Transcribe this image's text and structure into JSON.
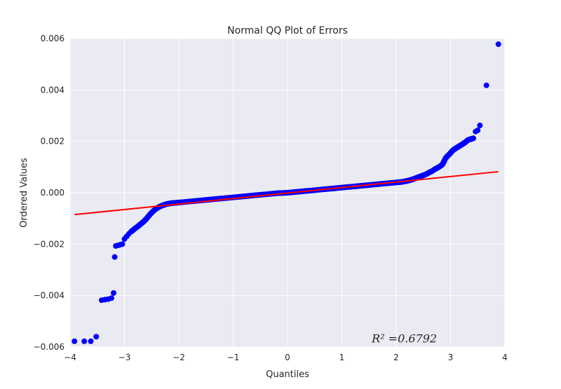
{
  "chart_data": {
    "type": "scatter",
    "title": "Normal QQ Plot of Errors",
    "xlabel": "Quantiles",
    "ylabel": "Ordered Values",
    "xlim": [
      -4,
      4
    ],
    "ylim": [
      -0.006,
      0.006
    ],
    "x_ticks": [
      -4,
      -3,
      -2,
      -1,
      0,
      1,
      2,
      3,
      4
    ],
    "x_tick_labels": [
      "−4",
      "−3",
      "−2",
      "−1",
      "0",
      "1",
      "2",
      "3",
      "4"
    ],
    "y_ticks": [
      -0.006,
      -0.004,
      -0.002,
      0.0,
      0.002,
      0.004,
      0.006
    ],
    "y_tick_labels": [
      "−0.006",
      "−0.004",
      "−0.002",
      "0.000",
      "0.002",
      "0.004",
      "0.006"
    ],
    "grid": true,
    "background_color": "#eaeaf2",
    "series": [
      {
        "kind": "points",
        "color": "#0000ff",
        "points": [
          [
            -3.92,
            -0.00578
          ],
          [
            -3.74,
            -0.00578
          ],
          [
            -3.62,
            -0.00578
          ],
          [
            -3.52,
            -0.0056
          ],
          [
            -3.42,
            -0.00418
          ],
          [
            -3.36,
            -0.00416
          ],
          [
            -3.3,
            -0.00414
          ],
          [
            -3.24,
            -0.0041
          ],
          [
            -3.2,
            -0.0039
          ],
          [
            -3.18,
            -0.0025
          ],
          [
            -3.16,
            -0.00207
          ],
          [
            -3.12,
            -0.00205
          ],
          [
            -3.08,
            -0.00202
          ],
          [
            -3.04,
            -0.002
          ],
          [
            -3.0,
            -0.0018
          ],
          [
            -2.96,
            -0.0017
          ],
          [
            -2.92,
            -0.0016
          ],
          [
            -2.88,
            -0.00152
          ],
          [
            -2.84,
            -0.00145
          ],
          [
            -2.8,
            -0.00138
          ],
          [
            -2.76,
            -0.00132
          ],
          [
            -2.72,
            -0.00125
          ],
          [
            -2.68,
            -0.00118
          ],
          [
            -2.64,
            -0.00111
          ],
          [
            -2.6,
            -0.00102
          ],
          [
            -2.56,
            -0.00092
          ],
          [
            -2.52,
            -0.00082
          ],
          [
            -2.48,
            -0.00073
          ],
          [
            -2.44,
            -0.00066
          ],
          [
            -2.4,
            -0.0006
          ],
          [
            -2.36,
            -0.00055
          ],
          [
            -2.32,
            -0.00051
          ],
          [
            -2.28,
            -0.00048
          ],
          [
            -2.24,
            -0.00045
          ],
          [
            -2.2,
            -0.00043
          ],
          [
            -2.15,
            -0.00041
          ],
          [
            -2.1,
            -0.0004
          ],
          [
            -2.05,
            -0.00039
          ],
          [
            -2.0,
            -0.00038
          ],
          [
            -1.9,
            -0.00036
          ],
          [
            -1.8,
            -0.00034
          ],
          [
            -1.7,
            -0.00032
          ],
          [
            -1.6,
            -0.0003
          ],
          [
            -1.5,
            -0.00028
          ],
          [
            -1.4,
            -0.00026
          ],
          [
            -1.3,
            -0.00024
          ],
          [
            -1.2,
            -0.00022
          ],
          [
            -1.1,
            -0.0002
          ],
          [
            -1.0,
            -0.00018
          ],
          [
            -0.9,
            -0.00016
          ],
          [
            -0.8,
            -0.00014
          ],
          [
            -0.7,
            -0.00012
          ],
          [
            -0.6,
            -0.0001
          ],
          [
            -0.5,
            -8e-05
          ],
          [
            -0.4,
            -6e-05
          ],
          [
            -0.3,
            -4e-05
          ],
          [
            -0.2,
            -2e-05
          ],
          [
            -0.1,
            -1e-05
          ],
          [
            0.0,
            0.0
          ],
          [
            0.1,
            2e-05
          ],
          [
            0.2,
            4e-05
          ],
          [
            0.3,
            6e-05
          ],
          [
            0.4,
            8e-05
          ],
          [
            0.5,
            0.0001
          ],
          [
            0.6,
            0.00012
          ],
          [
            0.7,
            0.00014
          ],
          [
            0.8,
            0.00016
          ],
          [
            0.9,
            0.00018
          ],
          [
            1.0,
            0.0002
          ],
          [
            1.1,
            0.00022
          ],
          [
            1.2,
            0.00024
          ],
          [
            1.3,
            0.00026
          ],
          [
            1.4,
            0.00028
          ],
          [
            1.5,
            0.0003
          ],
          [
            1.6,
            0.00032
          ],
          [
            1.7,
            0.00034
          ],
          [
            1.8,
            0.00036
          ],
          [
            1.9,
            0.00038
          ],
          [
            2.0,
            0.0004
          ],
          [
            2.05,
            0.00041
          ],
          [
            2.1,
            0.00042
          ],
          [
            2.15,
            0.00044
          ],
          [
            2.2,
            0.00046
          ],
          [
            2.25,
            0.00049
          ],
          [
            2.3,
            0.00052
          ],
          [
            2.35,
            0.00056
          ],
          [
            2.4,
            0.0006
          ],
          [
            2.45,
            0.00064
          ],
          [
            2.5,
            0.00068
          ],
          [
            2.55,
            0.00072
          ],
          [
            2.6,
            0.00078
          ],
          [
            2.65,
            0.00083
          ],
          [
            2.7,
            0.0009
          ],
          [
            2.75,
            0.00096
          ],
          [
            2.8,
            0.00102
          ],
          [
            2.85,
            0.0011
          ],
          [
            2.88,
            0.00122
          ],
          [
            2.91,
            0.00135
          ],
          [
            2.94,
            0.00142
          ],
          [
            2.97,
            0.00148
          ],
          [
            3.0,
            0.00155
          ],
          [
            3.03,
            0.00162
          ],
          [
            3.06,
            0.00168
          ],
          [
            3.09,
            0.00172
          ],
          [
            3.12,
            0.00176
          ],
          [
            3.15,
            0.0018
          ],
          [
            3.18,
            0.00184
          ],
          [
            3.21,
            0.00188
          ],
          [
            3.24,
            0.00192
          ],
          [
            3.27,
            0.00196
          ],
          [
            3.3,
            0.00202
          ],
          [
            3.33,
            0.00206
          ],
          [
            3.36,
            0.00208
          ],
          [
            3.39,
            0.0021
          ],
          [
            3.42,
            0.00212
          ],
          [
            3.46,
            0.00238
          ],
          [
            3.5,
            0.00243
          ],
          [
            3.54,
            0.00262
          ],
          [
            3.66,
            0.00418
          ],
          [
            3.88,
            0.00578
          ]
        ]
      },
      {
        "kind": "fit_line",
        "color": "#ff0000",
        "x": [
          -3.92,
          3.88
        ],
        "y": [
          -0.00085,
          0.00082
        ]
      }
    ],
    "annotations": [
      {
        "text": "R² =0.6792",
        "x": 1.55,
        "y": -0.0055
      }
    ]
  }
}
